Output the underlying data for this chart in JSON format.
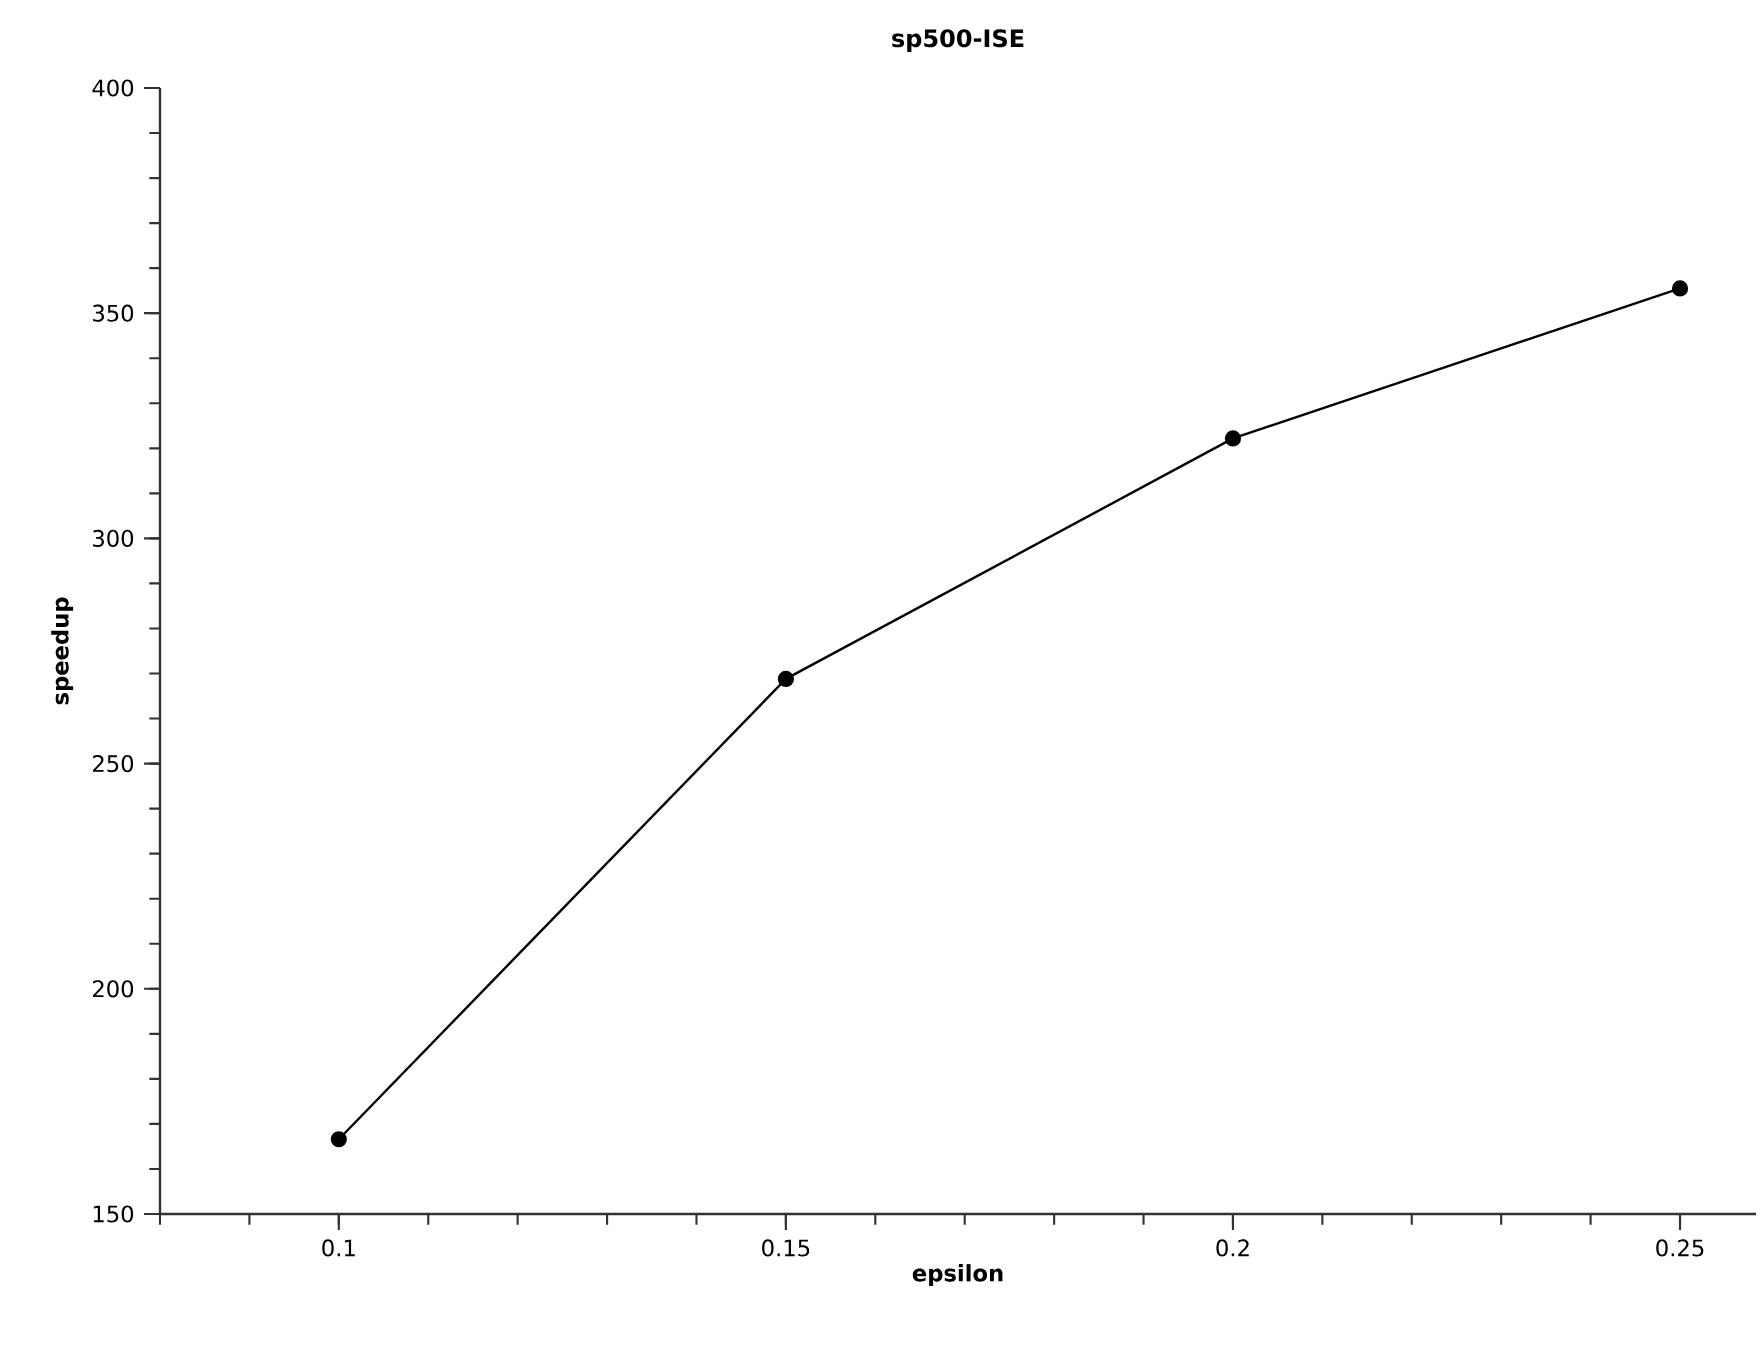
{
  "chart_data": {
    "type": "line",
    "title": "sp500-ISE",
    "xlabel": "epsilon",
    "ylabel": "speedup",
    "x": [
      0.1,
      0.15,
      0.2,
      0.25
    ],
    "series": [
      {
        "color": "#000000",
        "values": [
          166.6,
          268.8,
          322.2,
          355.5
        ]
      }
    ],
    "xlim": [
      0.08,
      0.2585
    ],
    "xticks": [
      0.1,
      0.15,
      0.2,
      0.25
    ],
    "ylim": [
      150,
      400
    ],
    "yticks": [
      150,
      200,
      250,
      300,
      350,
      400
    ],
    "marker": "circle",
    "line_style": "solid",
    "grid": false
  }
}
